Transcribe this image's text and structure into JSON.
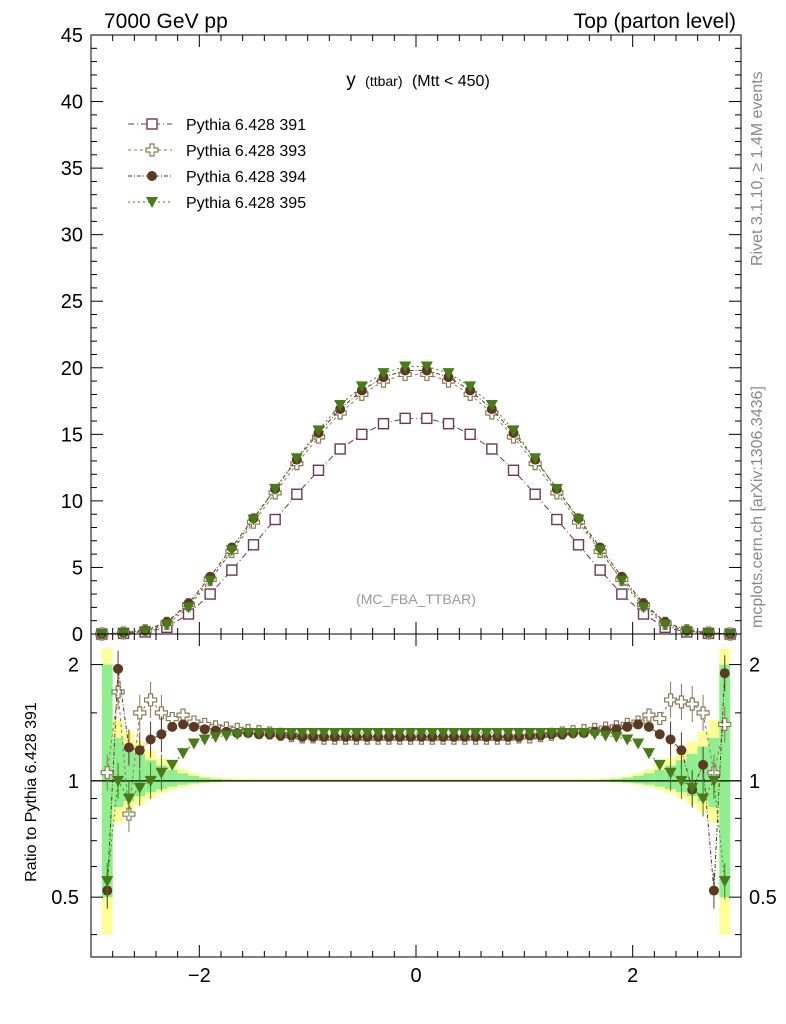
{
  "header": {
    "left": "7000 GeV pp",
    "right": "Top (parton level)"
  },
  "plot_title": {
    "main": "y",
    "sub": "(ttbar)",
    "cut": "(Mtt < 450)"
  },
  "side_labels": {
    "rivet": "Rivet 3.1.10, ≥ 1.4M events",
    "mcplots": "mcplots.cern.ch [arXiv:1306.3436]"
  },
  "watermark": "(MC_FBA_TTBAR)",
  "ratio_ylabel": "Ratio to Pythia 6.428 391",
  "colors": {
    "s391": "#6b3a4f",
    "s393": "#8a7a5a",
    "s394": "#5a3a22",
    "s395": "#4a7a1a",
    "band_yellow": "#ffff99",
    "band_green": "#90ee90"
  },
  "chart_data": [
    {
      "type": "line",
      "x": [
        -2.9,
        -2.7,
        -2.5,
        -2.3,
        -2.1,
        -1.9,
        -1.7,
        -1.5,
        -1.3,
        -1.1,
        -0.9,
        -0.7,
        -0.5,
        -0.3,
        -0.1,
        0.1,
        0.3,
        0.5,
        0.7,
        0.9,
        1.1,
        1.3,
        1.5,
        1.7,
        1.9,
        2.1,
        2.3,
        2.5,
        2.7,
        2.9
      ],
      "series": [
        {
          "name": "Pythia 6.428 391",
          "marker": "open-square",
          "values": [
            0.0,
            0.05,
            0.15,
            0.5,
            1.5,
            3.0,
            4.8,
            6.7,
            8.6,
            10.5,
            12.3,
            13.9,
            15.0,
            15.8,
            16.2,
            16.2,
            15.8,
            15.0,
            13.9,
            12.3,
            10.5,
            8.6,
            6.7,
            4.8,
            3.0,
            1.5,
            0.5,
            0.15,
            0.05,
            0.0
          ]
        },
        {
          "name": "Pythia 6.428 393",
          "marker": "open-cross",
          "values": [
            0.0,
            0.08,
            0.25,
            0.8,
            2.2,
            4.1,
            6.2,
            8.4,
            10.6,
            12.8,
            14.8,
            16.6,
            18.0,
            19.0,
            19.5,
            19.5,
            19.0,
            18.0,
            16.6,
            14.8,
            12.8,
            10.6,
            8.4,
            6.2,
            4.1,
            2.2,
            0.8,
            0.25,
            0.08,
            0.0
          ]
        },
        {
          "name": "Pythia 6.428 394",
          "marker": "filled-circle",
          "values": [
            0.0,
            0.1,
            0.28,
            0.9,
            2.3,
            4.3,
            6.5,
            8.7,
            10.9,
            13.1,
            15.1,
            16.9,
            18.3,
            19.3,
            19.8,
            19.8,
            19.3,
            18.3,
            16.9,
            15.1,
            13.1,
            10.9,
            8.7,
            6.5,
            4.3,
            2.3,
            0.9,
            0.28,
            0.1,
            0.0
          ]
        },
        {
          "name": "Pythia 6.428 395",
          "marker": "filled-triangle-down",
          "values": [
            0.0,
            0.06,
            0.2,
            0.7,
            2.0,
            4.0,
            6.3,
            8.6,
            10.9,
            13.2,
            15.3,
            17.2,
            18.6,
            19.6,
            20.1,
            20.1,
            19.6,
            18.6,
            17.2,
            15.3,
            13.2,
            10.9,
            8.6,
            6.3,
            4.0,
            2.0,
            0.7,
            0.2,
            0.06,
            0.0
          ]
        }
      ],
      "xlim": [
        -3.0,
        3.0
      ],
      "ylim": [
        0,
        45
      ],
      "yticks": [
        0,
        5,
        10,
        15,
        20,
        25,
        30,
        35,
        40,
        45
      ],
      "legend": "top-left"
    },
    {
      "type": "line",
      "x": [
        -2.85,
        -2.75,
        -2.65,
        -2.55,
        -2.45,
        -2.35,
        -2.25,
        -2.15,
        -2.05,
        -1.95,
        -1.85,
        -1.75,
        -1.65,
        -1.55,
        -1.45,
        -1.35,
        -1.25,
        -1.15,
        -1.05,
        -0.95,
        -0.85,
        -0.75,
        -0.65,
        -0.55,
        -0.45,
        -0.35,
        -0.25,
        -0.15,
        -0.05,
        0.05,
        0.15,
        0.25,
        0.35,
        0.45,
        0.55,
        0.65,
        0.75,
        0.85,
        0.95,
        1.05,
        1.15,
        1.25,
        1.35,
        1.45,
        1.55,
        1.65,
        1.75,
        1.85,
        1.95,
        2.05,
        2.15,
        2.25,
        2.35,
        2.45,
        2.55,
        2.65,
        2.75,
        2.85
      ],
      "series": [
        {
          "name": "Pythia 6.428 393",
          "values": [
            1.05,
            1.7,
            0.82,
            1.5,
            1.62,
            1.5,
            1.45,
            1.48,
            1.42,
            1.4,
            1.38,
            1.37,
            1.36,
            1.35,
            1.34,
            1.33,
            1.32,
            1.31,
            1.3,
            1.3,
            1.29,
            1.29,
            1.29,
            1.29,
            1.29,
            1.29,
            1.29,
            1.29,
            1.29,
            1.29,
            1.29,
            1.29,
            1.29,
            1.29,
            1.29,
            1.29,
            1.29,
            1.29,
            1.3,
            1.3,
            1.31,
            1.32,
            1.33,
            1.34,
            1.35,
            1.36,
            1.37,
            1.38,
            1.4,
            1.42,
            1.48,
            1.45,
            1.62,
            1.6,
            1.58,
            1.5,
            1.05,
            1.4
          ]
        },
        {
          "name": "Pythia 6.428 394",
          "values": [
            0.52,
            1.95,
            1.22,
            1.2,
            1.28,
            1.32,
            1.38,
            1.4,
            1.38,
            1.36,
            1.35,
            1.34,
            1.33,
            1.33,
            1.32,
            1.32,
            1.31,
            1.31,
            1.3,
            1.3,
            1.3,
            1.3,
            1.3,
            1.3,
            1.3,
            1.3,
            1.3,
            1.3,
            1.3,
            1.3,
            1.3,
            1.3,
            1.3,
            1.3,
            1.3,
            1.3,
            1.3,
            1.3,
            1.3,
            1.31,
            1.31,
            1.32,
            1.32,
            1.33,
            1.33,
            1.34,
            1.35,
            1.36,
            1.38,
            1.4,
            1.38,
            1.32,
            1.28,
            1.2,
            0.95,
            1.1,
            0.52,
            1.9
          ]
        },
        {
          "name": "Pythia 6.428 395",
          "values": [
            0.55,
            1.0,
            0.9,
            0.96,
            1.0,
            1.05,
            1.1,
            1.18,
            1.25,
            1.28,
            1.3,
            1.31,
            1.32,
            1.33,
            1.33,
            1.33,
            1.33,
            1.33,
            1.33,
            1.33,
            1.33,
            1.33,
            1.33,
            1.33,
            1.33,
            1.33,
            1.33,
            1.33,
            1.33,
            1.33,
            1.33,
            1.33,
            1.33,
            1.33,
            1.33,
            1.33,
            1.33,
            1.33,
            1.33,
            1.33,
            1.33,
            1.33,
            1.33,
            1.33,
            1.33,
            1.32,
            1.31,
            1.3,
            1.28,
            1.25,
            1.18,
            1.1,
            1.05,
            1.0,
            0.96,
            0.9,
            1.0,
            0.55
          ]
        }
      ],
      "xlim": [
        -3.0,
        3.0
      ],
      "ylim": [
        0.35,
        2.4
      ],
      "log_y": true,
      "yticks": [
        0.5,
        1,
        2
      ],
      "xticks": [
        -2,
        0,
        2
      ]
    }
  ]
}
